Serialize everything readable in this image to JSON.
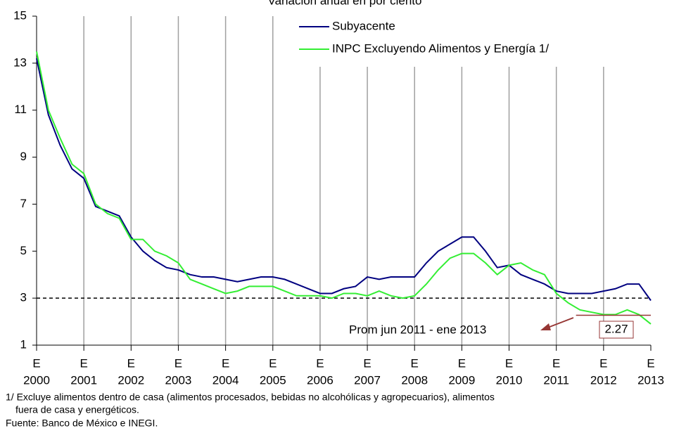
{
  "chart_data": {
    "type": "line",
    "title": "Variación anual en por ciento",
    "x": [
      2000,
      2000.25,
      2000.5,
      2000.75,
      2001,
      2001.25,
      2001.5,
      2001.75,
      2002,
      2002.25,
      2002.5,
      2002.75,
      2003,
      2003.25,
      2003.5,
      2003.75,
      2004,
      2004.25,
      2004.5,
      2004.75,
      2005,
      2005.25,
      2005.5,
      2005.75,
      2006,
      2006.25,
      2006.5,
      2006.75,
      2007,
      2007.25,
      2007.5,
      2007.75,
      2008,
      2008.25,
      2008.5,
      2008.75,
      2009,
      2009.25,
      2009.5,
      2009.75,
      2010,
      2010.25,
      2010.5,
      2010.75,
      2011,
      2011.25,
      2011.5,
      2011.75,
      2012,
      2012.25,
      2012.5,
      2012.75,
      2013
    ],
    "series": [
      {
        "name": "Subyacente",
        "color": "#000080",
        "values": [
          13.2,
          10.8,
          9.5,
          8.5,
          8.1,
          6.9,
          6.7,
          6.5,
          5.6,
          5.0,
          4.6,
          4.3,
          4.2,
          4.0,
          3.9,
          3.9,
          3.8,
          3.7,
          3.8,
          3.9,
          3.9,
          3.8,
          3.6,
          3.4,
          3.2,
          3.2,
          3.4,
          3.5,
          3.9,
          3.8,
          3.9,
          3.9,
          3.9,
          4.5,
          5.0,
          5.3,
          5.6,
          5.6,
          5.0,
          4.3,
          4.4,
          4.0,
          3.8,
          3.6,
          3.3,
          3.2,
          3.2,
          3.2,
          3.3,
          3.4,
          3.6,
          3.6,
          2.9
        ]
      },
      {
        "name": "INPC Excluyendo Alimentos y Energía 1/",
        "color": "#33ee33",
        "values": [
          13.5,
          11.0,
          9.8,
          8.7,
          8.3,
          7.0,
          6.6,
          6.4,
          5.5,
          5.5,
          5.0,
          4.8,
          4.5,
          3.8,
          3.6,
          3.4,
          3.2,
          3.3,
          3.5,
          3.5,
          3.5,
          3.3,
          3.1,
          3.1,
          3.1,
          3.0,
          3.2,
          3.2,
          3.1,
          3.3,
          3.1,
          3.0,
          3.1,
          3.6,
          4.2,
          4.7,
          4.9,
          4.9,
          4.5,
          4.0,
          4.4,
          4.5,
          4.2,
          4.0,
          3.2,
          2.8,
          2.5,
          2.4,
          2.3,
          2.3,
          2.5,
          2.3,
          1.9
        ]
      }
    ],
    "xlim": [
      2000,
      2013
    ],
    "xticks": [
      2000,
      2001,
      2002,
      2003,
      2004,
      2005,
      2006,
      2007,
      2008,
      2009,
      2010,
      2011,
      2012,
      2013
    ],
    "xtick_month": "E",
    "ylim": [
      1,
      15
    ],
    "yticks": [
      1,
      3,
      5,
      7,
      9,
      11,
      13,
      15
    ],
    "grid": "x",
    "legend": "top-right",
    "reference_line": 3,
    "average": {
      "value": 2.27,
      "label": "2.27",
      "text": "Prom jun 2011 - ene 2013",
      "x": [
        2011.417,
        2013
      ],
      "color": "#963634"
    },
    "footnote": [
      "1/ Excluye alimentos dentro de casa (alimentos procesados, bebidas no alcohólicas y agropecuarios), alimentos",
      "fuera de casa y energéticos."
    ],
    "source": "Fuente: Banco de México e INEGI."
  }
}
